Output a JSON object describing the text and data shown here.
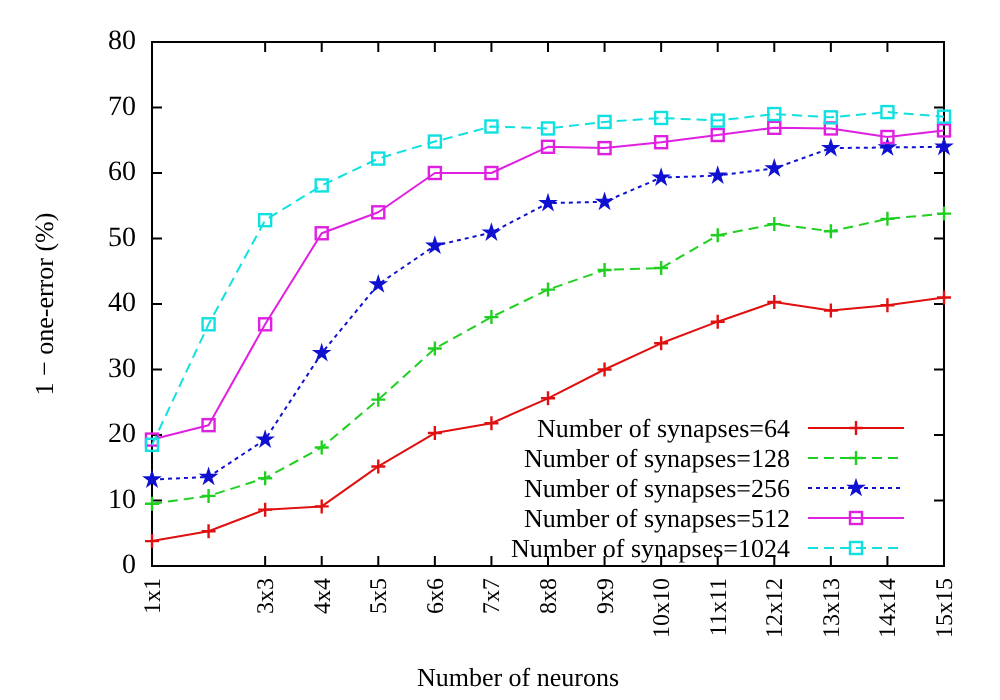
{
  "chart_data": {
    "type": "line",
    "xlabel": "Number of neurons",
    "ylabel": "1 − one-error (%)",
    "categories": [
      "1x1",
      null,
      "3x3",
      "4x4",
      "5x5",
      "6x6",
      "7x7",
      "8x8",
      "9x9",
      "10x10",
      "11x11",
      "12x12",
      "13x13",
      "14x14",
      "15x15"
    ],
    "ylim": [
      0,
      80
    ],
    "yticks": [
      0,
      10,
      20,
      30,
      40,
      50,
      60,
      70,
      80
    ],
    "grid": false,
    "legend": "bottom right",
    "series": [
      {
        "name": "Number of synapses=64",
        "color": "#e01010",
        "marker": "cross",
        "line_style": "solid",
        "values": [
          3.8,
          5.3,
          8.6,
          9.1,
          15.2,
          20.3,
          21.8,
          25.6,
          30,
          34,
          37.3,
          40.3,
          39,
          39.8,
          41
        ]
      },
      {
        "name": "Number of synapses=128",
        "color": "#20d020",
        "marker": "cross",
        "line_style": "dashed",
        "values": [
          9.5,
          10.7,
          13.4,
          18.1,
          25.4,
          33.2,
          38,
          42.2,
          45.2,
          45.5,
          50.5,
          52.2,
          51.1,
          53,
          53.8
        ]
      },
      {
        "name": "Number of synapses=256",
        "color": "#1010d0",
        "marker": "star",
        "line_style": "dotted",
        "values": [
          13.2,
          13.6,
          19.3,
          32.5,
          43,
          48.9,
          50.9,
          55.4,
          55.6,
          59.3,
          59.6,
          60.7,
          63.8,
          63.9,
          64
        ]
      },
      {
        "name": "Number of synapses=512",
        "color": "#e020e0",
        "marker": "square",
        "line_style": "solid",
        "values": [
          19.3,
          21.5,
          36.9,
          50.8,
          54,
          60,
          60,
          64,
          63.8,
          64.7,
          65.8,
          66.9,
          66.8,
          65.5,
          66.5
        ]
      },
      {
        "name": "Number of synapses=1024",
        "color": "#10e0e0",
        "marker": "square",
        "line_style": "dashed",
        "values": [
          18.5,
          36.9,
          52.8,
          58.1,
          62.2,
          64.8,
          67.1,
          66.8,
          67.8,
          68.4,
          68,
          69,
          68.5,
          69.3,
          68.6
        ]
      }
    ]
  }
}
